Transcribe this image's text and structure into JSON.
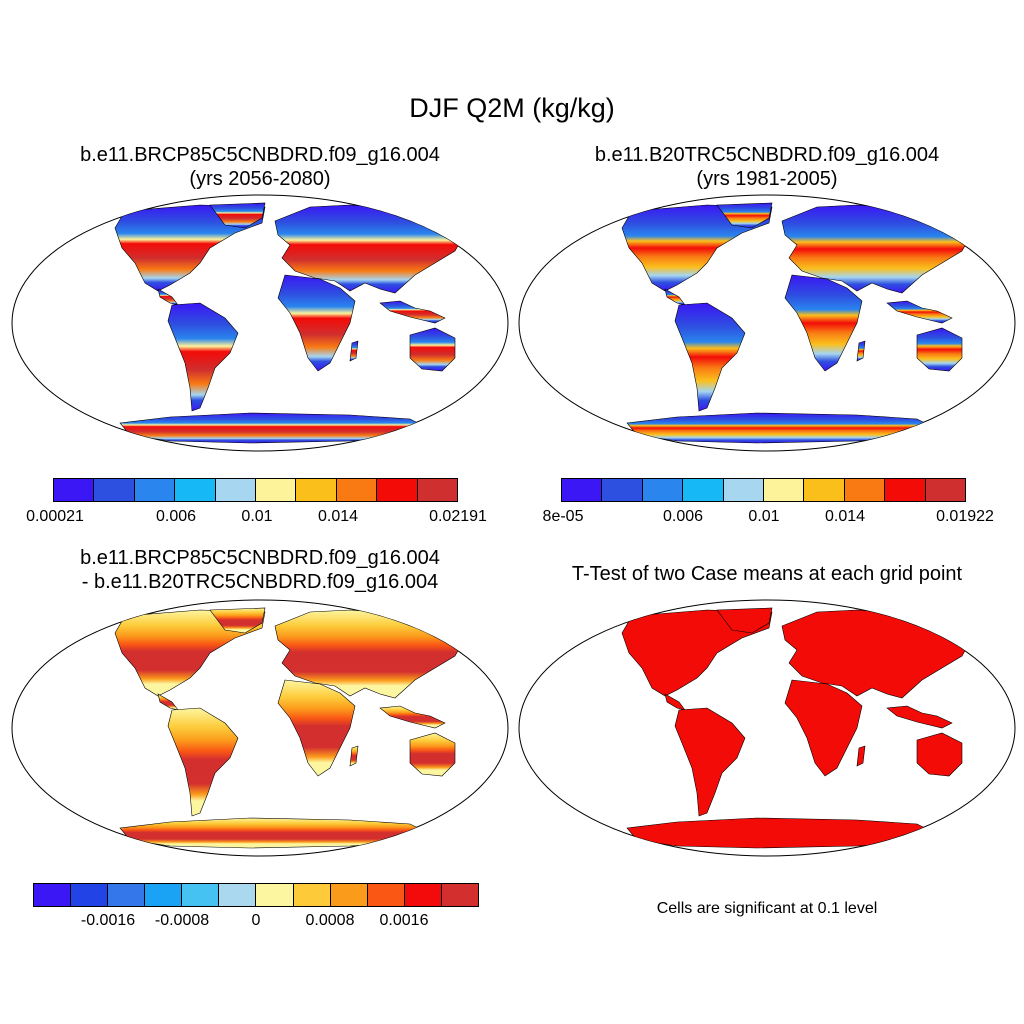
{
  "figure": {
    "title": "DJF Q2M (kg/kg)"
  },
  "panels": [
    {
      "title_line1": "b.e11.BRCP85C5CNBDRD.f09_g16.004",
      "title_line2": "(yrs 2056-2080)",
      "colorbar": {
        "colors": [
          "#3b17f5",
          "#2e50e0",
          "#2a85ee",
          "#16b9f5",
          "#a6d6f0",
          "#fdf39a",
          "#fbbf1c",
          "#f97a13",
          "#f30b08",
          "#d02f2f"
        ],
        "ticks": [
          "0.00021",
          "0.006",
          "0.01",
          "0.014",
          "0.02191"
        ]
      }
    },
    {
      "title_line1": "b.e11.B20TRC5CNBDRD.f09_g16.004",
      "title_line2": "(yrs 1981-2005)",
      "colorbar": {
        "colors": [
          "#3b17f5",
          "#2e50e0",
          "#2a85ee",
          "#16b9f5",
          "#a6d6f0",
          "#fdf39a",
          "#fbbf1c",
          "#f97a13",
          "#f30b08",
          "#d02f2f"
        ],
        "ticks": [
          "8e-05",
          "0.006",
          "0.01",
          "0.014",
          "0.01922"
        ]
      }
    },
    {
      "title_line1": "b.e11.BRCP85C5CNBDRD.f09_g16.004",
      "title_line2": "- b.e11.B20TRC5CNBDRD.f09_g16.004",
      "colorbar": {
        "colors": [
          "#3b17f5",
          "#2244e6",
          "#3377ea",
          "#1aa3f5",
          "#45c1f2",
          "#a9d8ef",
          "#fdf6a0",
          "#fdcb3a",
          "#fb9b1c",
          "#fa5715",
          "#f30b0b",
          "#d32f2f"
        ],
        "ticks": [
          "-0.0016",
          "-0.0008",
          "0",
          "0.0008",
          "0.0016"
        ]
      }
    },
    {
      "title_line1": "T-Test of two Case means at each grid point",
      "note": "Cells are significant at 0.1 level"
    }
  ]
}
